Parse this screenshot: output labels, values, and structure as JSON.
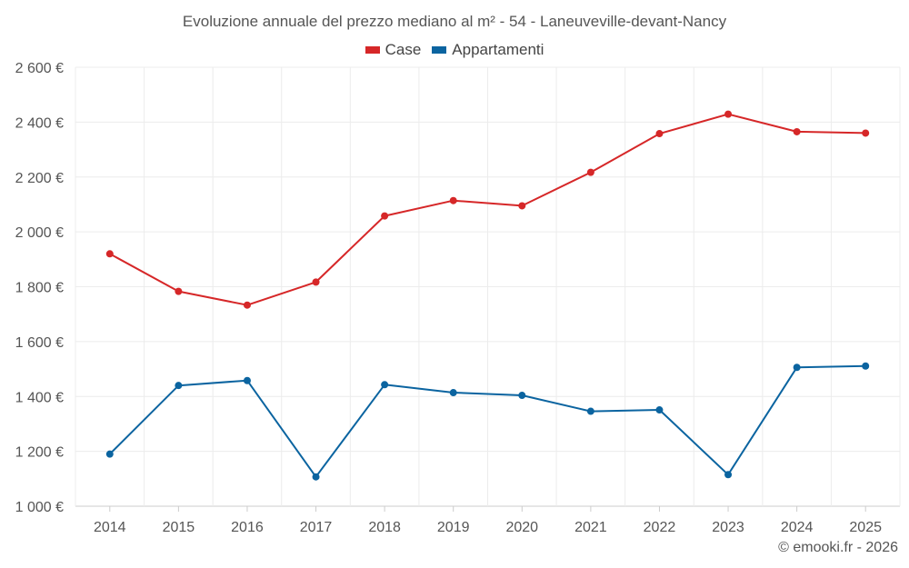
{
  "chart_data": {
    "type": "line",
    "title": "Evoluzione annuale del prezzo mediano al m² - 54 - Laneuveville-devant-Nancy",
    "categories": [
      "2014",
      "2015",
      "2016",
      "2017",
      "2018",
      "2019",
      "2020",
      "2021",
      "2022",
      "2023",
      "2024",
      "2025"
    ],
    "series": [
      {
        "name": "Case",
        "color": "#d62728",
        "values": [
          1920,
          1783,
          1733,
          1817,
          2058,
          2114,
          2095,
          2217,
          2358,
          2429,
          2365,
          2360
        ]
      },
      {
        "name": "Appartamenti",
        "color": "#0b64a0",
        "values": [
          1190,
          1440,
          1458,
          1107,
          1443,
          1414,
          1404,
          1346,
          1351,
          1115,
          1506,
          1511
        ]
      }
    ],
    "yticks": [
      "1 000 €",
      "1 200 €",
      "1 400 €",
      "1 600 €",
      "1 800 €",
      "2 000 €",
      "2 200 €",
      "2 400 €",
      "2 600 €"
    ],
    "ylim": [
      1000,
      2600
    ],
    "xlabel": "",
    "ylabel": "",
    "grid": true,
    "legend_position": "top-center"
  },
  "credit": "© emooki.fr - 2026"
}
